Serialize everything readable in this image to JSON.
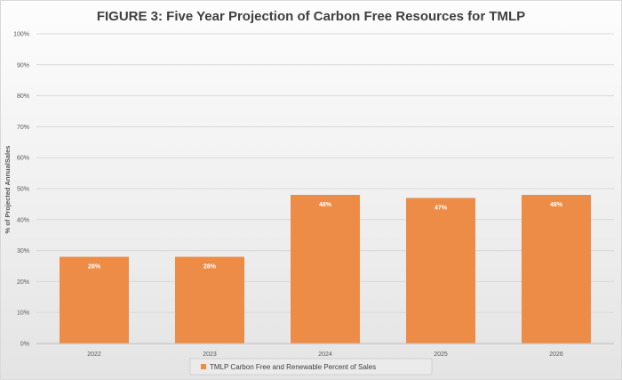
{
  "chart_data": {
    "type": "bar",
    "title": "FIGURE 3: Five Year Projection of Carbon Free Resources for TMLP",
    "xlabel": "",
    "ylabel": "% of Projected AnnualSales",
    "categories": [
      "2022",
      "2023",
      "2024",
      "2025",
      "2026"
    ],
    "series": [
      {
        "name": "TMLP Carbon Free and Renewable Percent of Sales",
        "values": [
          28,
          28,
          48,
          47,
          48
        ],
        "labels": [
          "28%",
          "28%",
          "48%",
          "47%",
          "48%"
        ]
      }
    ],
    "ylim": [
      0,
      100
    ],
    "yticks": [
      "0%",
      "10%",
      "20%",
      "30%",
      "40%",
      "50%",
      "60%",
      "70%",
      "80%",
      "90%",
      "100%"
    ],
    "grid": true,
    "legend_position": "bottom",
    "colors": {
      "bar": "#ed8c46",
      "gridline": "#d9d9d9",
      "axis": "#bfbfbf"
    }
  }
}
